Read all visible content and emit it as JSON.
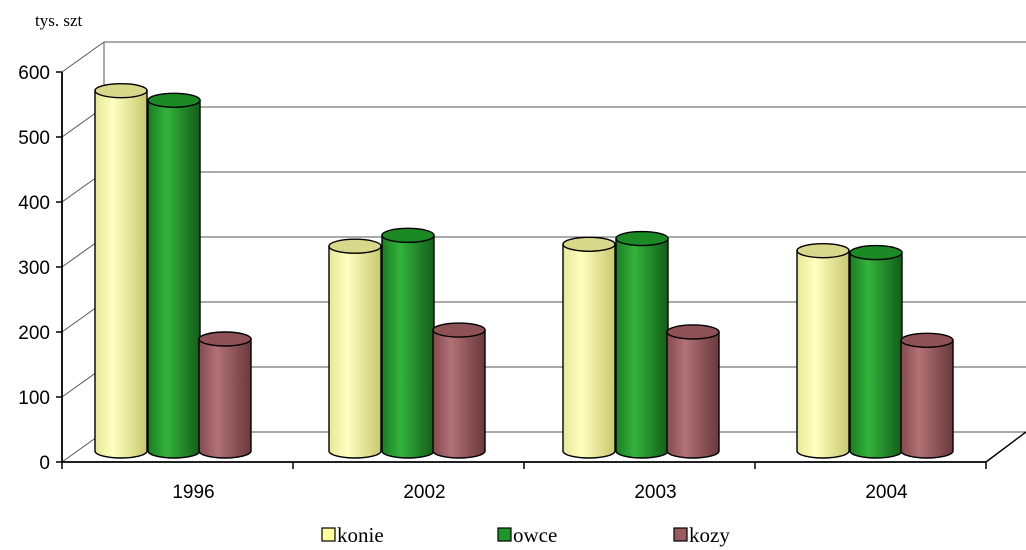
{
  "chart_data": {
    "type": "bar",
    "style": "3d-cylinder",
    "ylabel": "tys. szt",
    "categories": [
      "1996",
      "2002",
      "2003",
      "2004"
    ],
    "series": [
      {
        "name": "konie",
        "values": [
          563,
          320,
          323,
          313
        ],
        "color": "#ffff99"
      },
      {
        "name": "owce",
        "values": [
          548,
          337,
          332,
          310
        ],
        "color": "#1e9628"
      },
      {
        "name": "kozy",
        "values": [
          175,
          189,
          186,
          173
        ],
        "color": "#9b5a5e"
      }
    ],
    "ylim": [
      0,
      600
    ],
    "yticks": [
      "0",
      "100",
      "200",
      "300",
      "400",
      "500",
      "600"
    ],
    "grid": true,
    "legend": "bottom"
  }
}
